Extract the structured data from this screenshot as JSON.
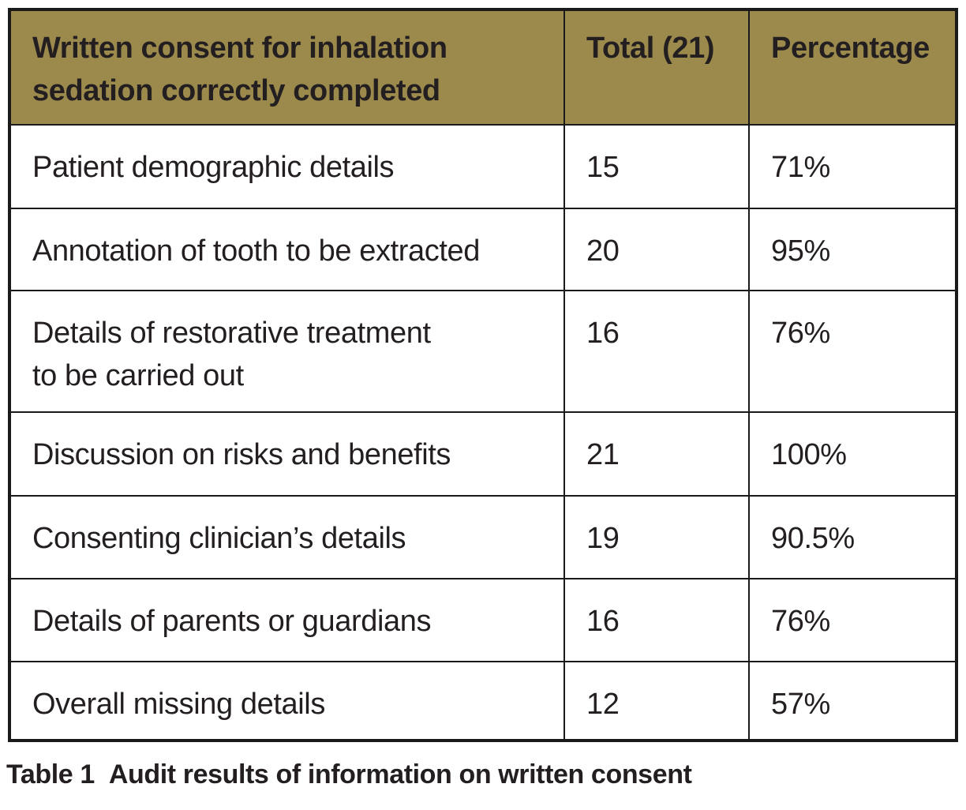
{
  "table": {
    "header": {
      "description": "Written consent for inhalation\nsedation correctly completed",
      "total": "Total (21)",
      "percentage": "Percentage"
    },
    "rows": [
      {
        "label": "Patient demographic details",
        "total": "15",
        "percentage": "71%"
      },
      {
        "label": "Annotation of tooth to be extracted",
        "total": "20",
        "percentage": "95%"
      },
      {
        "label": "Details of restorative treatment\nto be carried out",
        "total": "16",
        "percentage": "76%"
      },
      {
        "label": "Discussion on risks and benefits",
        "total": "21",
        "percentage": "100%"
      },
      {
        "label": "Consenting clinician’s details",
        "total": "19",
        "percentage": "90.5%"
      },
      {
        "label": "Details of parents or guardians",
        "total": "16",
        "percentage": "76%"
      },
      {
        "label": "Overall missing details",
        "total": "12",
        "percentage": "57%"
      }
    ]
  },
  "caption": {
    "label": "Table 1",
    "text": "Audit results of information on written consent"
  },
  "colors": {
    "header_bg": "#9c8a4d",
    "border": "#1a1a1a",
    "text": "#231f20",
    "background": "#ffffff"
  }
}
